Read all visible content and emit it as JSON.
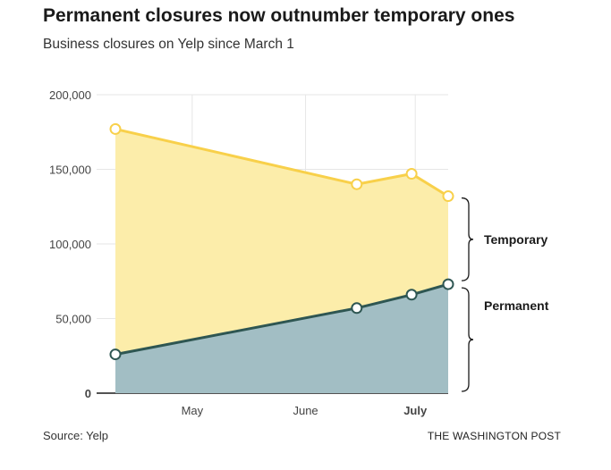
{
  "title": "Permanent closures now outnumber temporary ones",
  "subtitle": "Business closures on Yelp since March 1",
  "source": "Source: Yelp",
  "credit": "THE WASHINGTON POST",
  "colors": {
    "temporary_fill": "#fcedaa",
    "temporary_line": "#f8d04a",
    "permanent_fill": "#a2bec4",
    "permanent_line": "#2e5652",
    "grid": "#e6e6e6",
    "axis": "#1a1a1a"
  },
  "chart_data": {
    "type": "area",
    "x": [
      "2020-04-10",
      "2020-06-15",
      "2020-06-30",
      "2020-07-10"
    ],
    "x_ticks": [
      {
        "date": "2020-05-01",
        "label": "May",
        "bold": false
      },
      {
        "date": "2020-06-01",
        "label": "June",
        "bold": false
      },
      {
        "date": "2020-07-01",
        "label": "July",
        "bold": true
      }
    ],
    "xlim": [
      "2020-04-10",
      "2020-07-10"
    ],
    "y_ticks": [
      {
        "value": 0,
        "label": "0",
        "bold": true
      },
      {
        "value": 50000,
        "label": "50,000",
        "bold": false
      },
      {
        "value": 100000,
        "label": "100,000",
        "bold": false
      },
      {
        "value": 150000,
        "label": "150,000",
        "bold": false
      },
      {
        "value": 200000,
        "label": "200,000",
        "bold": false
      }
    ],
    "ylim": [
      0,
      200000
    ],
    "grid": true,
    "stacked": true,
    "series": [
      {
        "name": "Permanent",
        "values": [
          26000,
          57000,
          66000,
          73000
        ]
      },
      {
        "name": "Temporary",
        "values": [
          151000,
          83000,
          81000,
          59000
        ]
      }
    ]
  }
}
